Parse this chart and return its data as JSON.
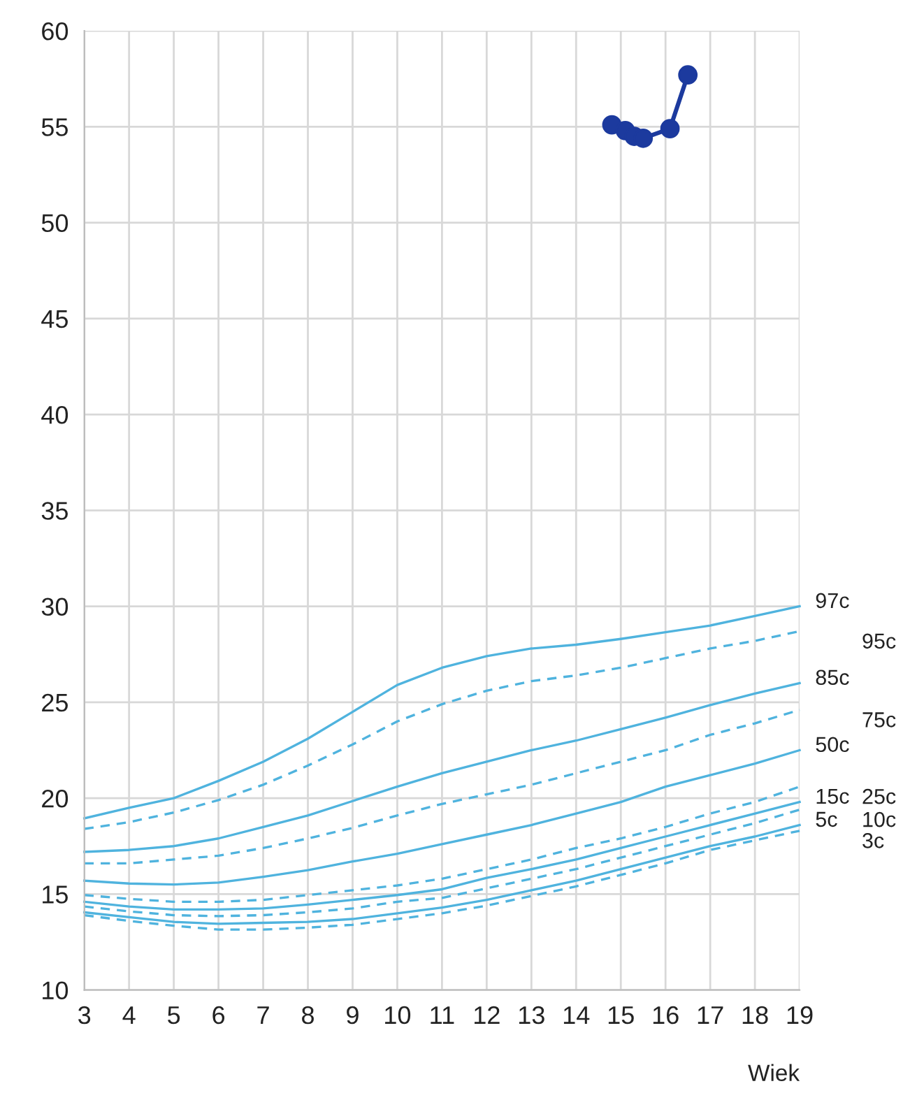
{
  "chart_data": {
    "type": "line",
    "xlabel": "Wiek",
    "x": [
      3,
      4,
      5,
      6,
      7,
      8,
      9,
      10,
      11,
      12,
      13,
      14,
      15,
      16,
      17,
      18,
      19
    ],
    "xlim": [
      3,
      19
    ],
    "xticks": [
      3,
      4,
      5,
      6,
      7,
      8,
      9,
      10,
      11,
      12,
      13,
      14,
      15,
      16,
      17,
      18,
      19
    ],
    "ylim": [
      10,
      60
    ],
    "yticks": [
      10,
      15,
      20,
      25,
      30,
      35,
      40,
      45,
      50,
      55,
      60
    ],
    "grid": true,
    "legend": false,
    "series": [
      {
        "name": "97c",
        "color": "#4fb3de",
        "line_style": "solid",
        "marker": "none",
        "values": [
          18.95,
          19.5,
          20.0,
          20.9,
          21.9,
          23.1,
          24.5,
          25.9,
          26.8,
          27.4,
          27.8,
          28.0,
          28.3,
          28.65,
          29.0,
          29.5,
          30.0
        ]
      },
      {
        "name": "95c",
        "color": "#4fb3de",
        "line_style": "dashed",
        "marker": "none",
        "values": [
          18.4,
          18.75,
          19.25,
          19.9,
          20.7,
          21.7,
          22.8,
          24.0,
          24.9,
          25.6,
          26.1,
          26.4,
          26.8,
          27.3,
          27.8,
          28.2,
          28.7
        ]
      },
      {
        "name": "85c",
        "color": "#4fb3de",
        "line_style": "solid",
        "marker": "none",
        "values": [
          17.2,
          17.3,
          17.5,
          17.9,
          18.5,
          19.1,
          19.85,
          20.6,
          21.3,
          21.9,
          22.5,
          23.0,
          23.6,
          24.2,
          24.85,
          25.45,
          26.0
        ]
      },
      {
        "name": "75c",
        "color": "#4fb3de",
        "line_style": "dashed",
        "marker": "none",
        "values": [
          16.6,
          16.6,
          16.8,
          17.0,
          17.4,
          17.9,
          18.45,
          19.1,
          19.7,
          20.2,
          20.7,
          21.3,
          21.9,
          22.5,
          23.3,
          23.9,
          24.6
        ]
      },
      {
        "name": "50c",
        "color": "#4fb3de",
        "line_style": "solid",
        "marker": "none",
        "values": [
          15.7,
          15.55,
          15.5,
          15.6,
          15.9,
          16.25,
          16.7,
          17.1,
          17.6,
          18.1,
          18.6,
          19.2,
          19.8,
          20.6,
          21.2,
          21.8,
          22.5
        ]
      },
      {
        "name": "25c",
        "color": "#4fb3de",
        "line_style": "dashed",
        "marker": "none",
        "values": [
          14.95,
          14.75,
          14.6,
          14.6,
          14.7,
          14.95,
          15.2,
          15.45,
          15.8,
          16.3,
          16.8,
          17.4,
          17.9,
          18.5,
          19.2,
          19.8,
          20.6
        ]
      },
      {
        "name": "15c",
        "color": "#4fb3de",
        "line_style": "solid",
        "marker": "none",
        "values": [
          14.6,
          14.35,
          14.2,
          14.2,
          14.25,
          14.45,
          14.7,
          14.95,
          15.25,
          15.85,
          16.3,
          16.8,
          17.4,
          18.0,
          18.6,
          19.2,
          19.8
        ]
      },
      {
        "name": "10c",
        "color": "#4fb3de",
        "line_style": "dashed",
        "marker": "none",
        "values": [
          14.35,
          14.1,
          13.9,
          13.85,
          13.9,
          14.05,
          14.25,
          14.6,
          14.8,
          15.3,
          15.8,
          16.3,
          16.9,
          17.5,
          18.1,
          18.7,
          19.4
        ]
      },
      {
        "name": "5c",
        "color": "#4fb3de",
        "line_style": "solid",
        "marker": "none",
        "values": [
          14.05,
          13.8,
          13.55,
          13.45,
          13.5,
          13.55,
          13.7,
          14.0,
          14.3,
          14.7,
          15.2,
          15.7,
          16.3,
          16.9,
          17.5,
          18.0,
          18.6
        ]
      },
      {
        "name": "3c",
        "color": "#4fb3de",
        "line_style": "dashed",
        "marker": "none",
        "values": [
          13.9,
          13.6,
          13.35,
          13.15,
          13.15,
          13.25,
          13.4,
          13.7,
          14.0,
          14.4,
          14.9,
          15.4,
          16.0,
          16.6,
          17.3,
          17.8,
          18.3
        ]
      },
      {
        "color": "#1c3a9e",
        "line_style": "solid",
        "marker": "circle",
        "x": [
          14.8,
          15.1,
          15.3,
          15.5,
          16.1,
          16.5
        ],
        "values": [
          55.1,
          54.8,
          54.5,
          54.4,
          54.9,
          57.7
        ]
      }
    ]
  }
}
